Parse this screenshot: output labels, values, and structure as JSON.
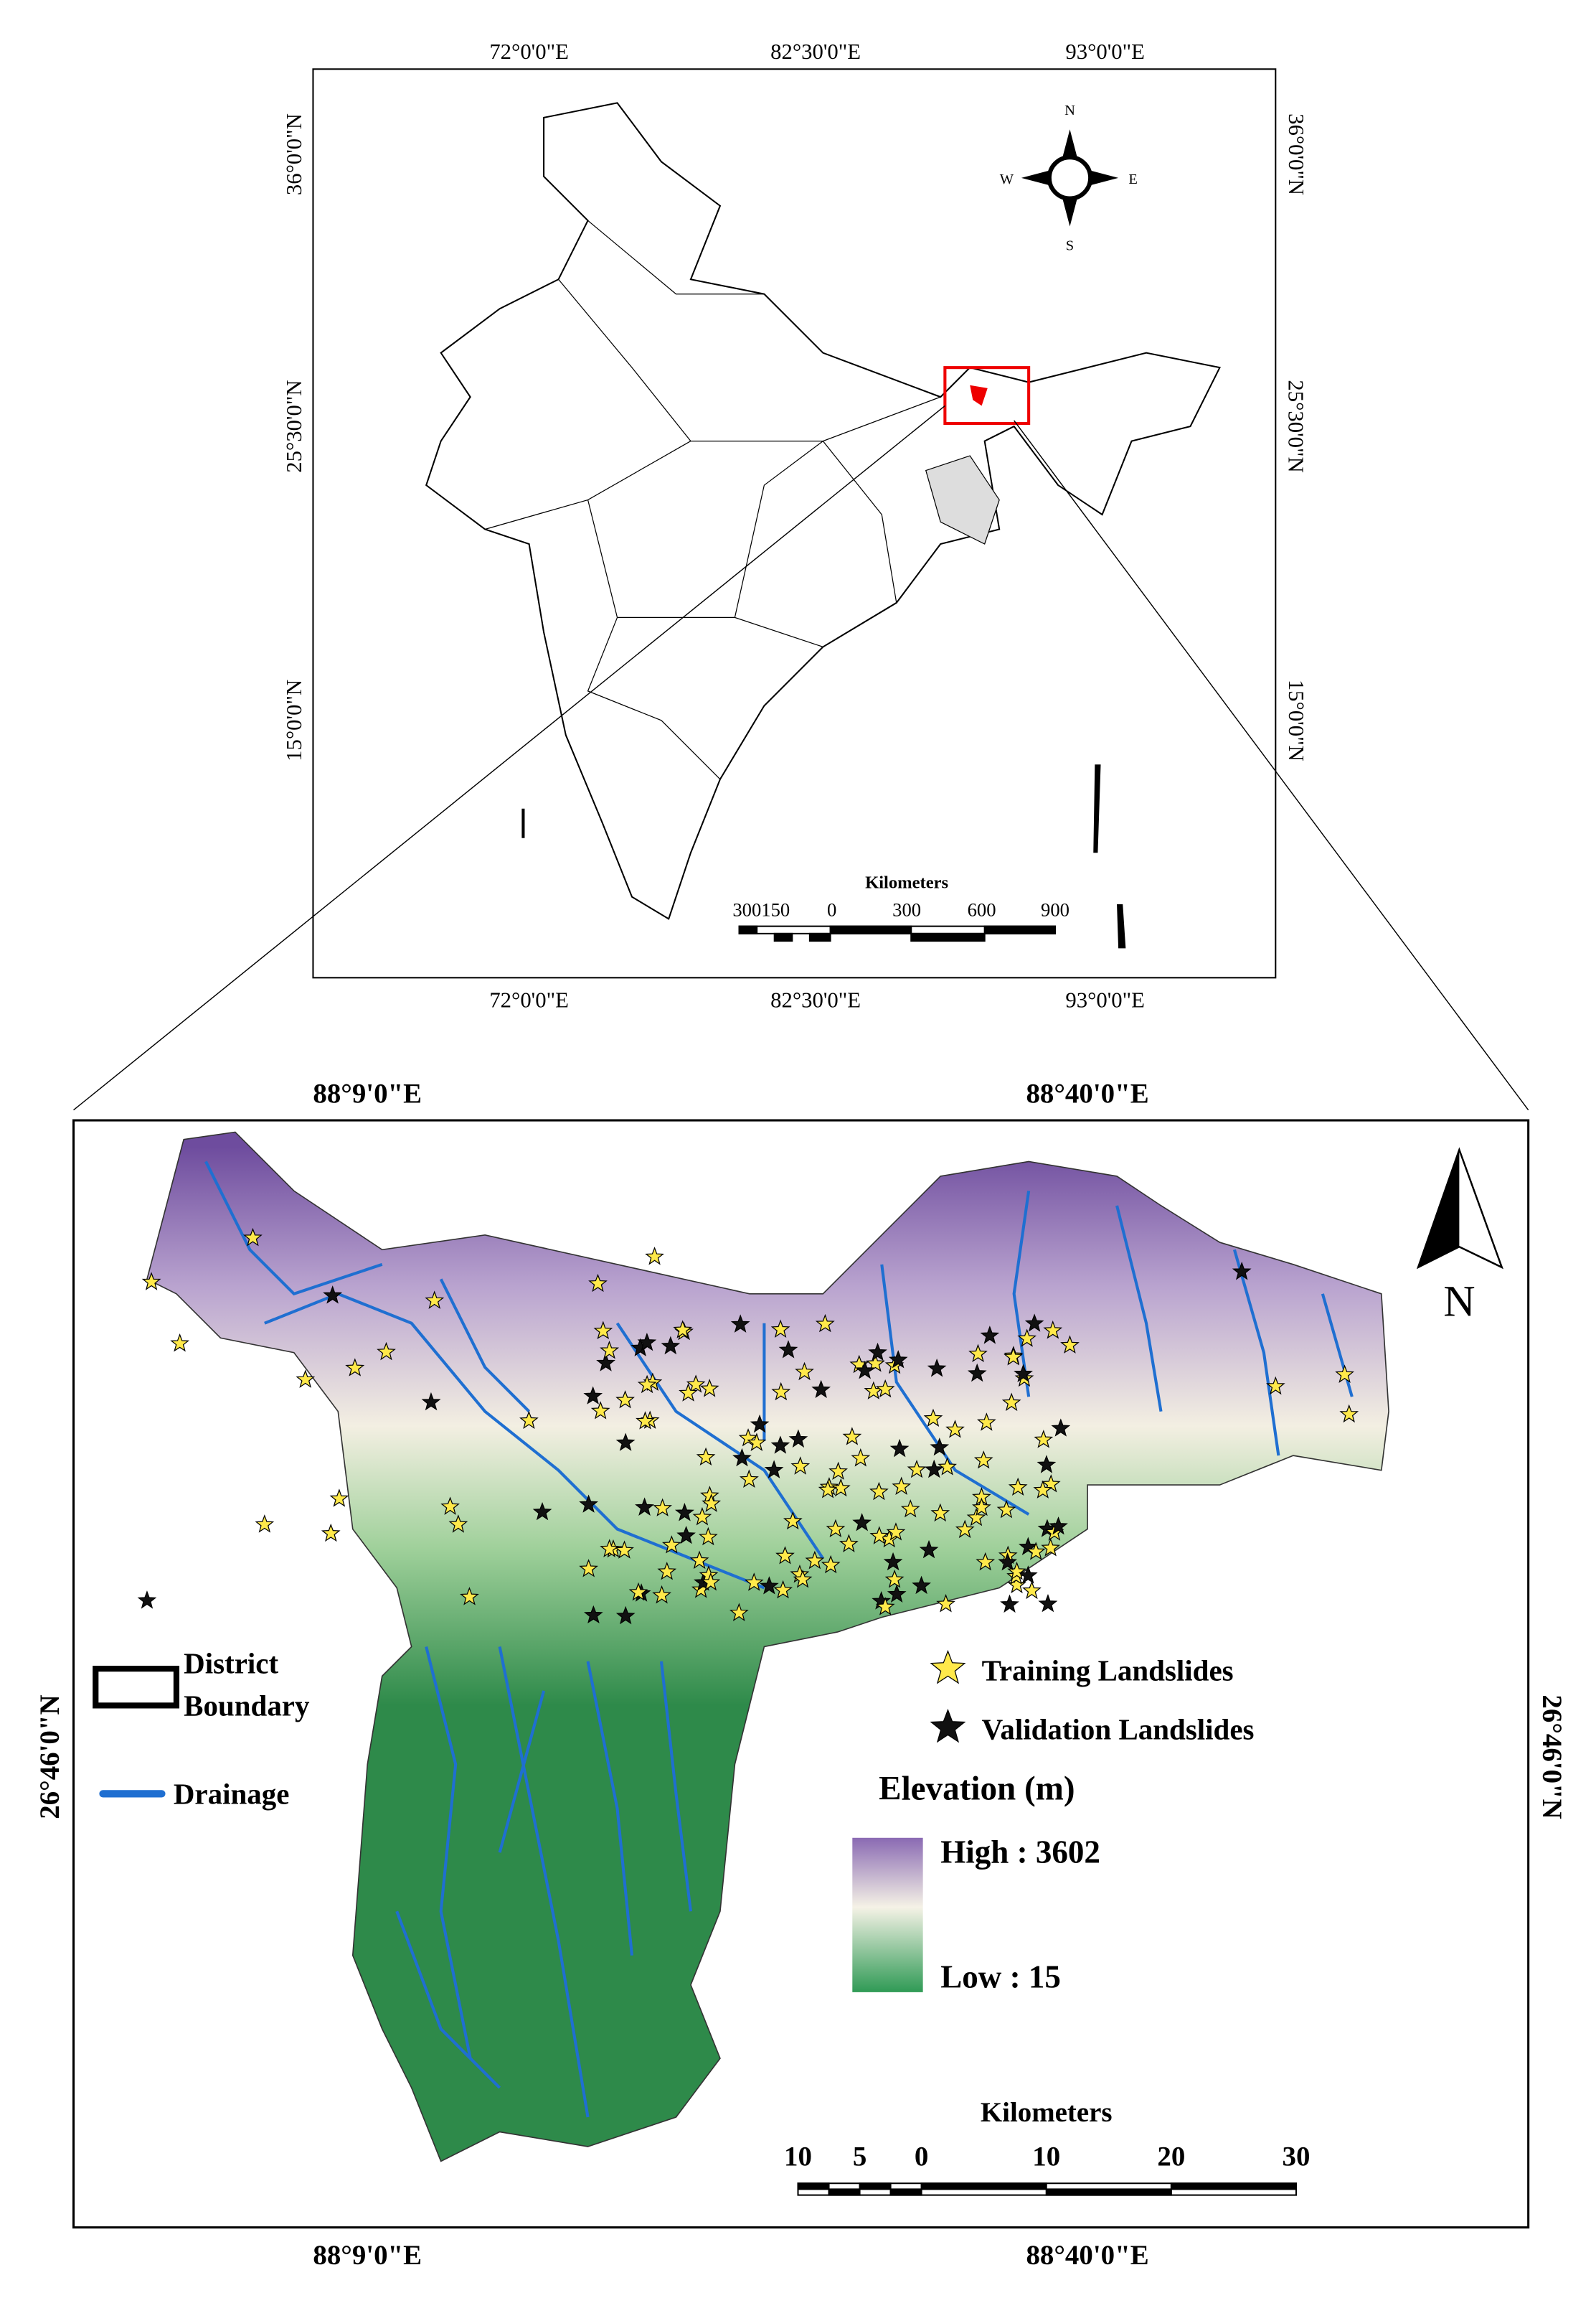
{
  "inset_map": {
    "top_labels": [
      "72°0'0\"E",
      "82°30'0\"E",
      "93°0'0\"E"
    ],
    "bottom_labels": [
      "72°0'0\"E",
      "82°30'0\"E",
      "93°0'0\"E"
    ],
    "left_labels": [
      "36°0'0\"N",
      "25°30'0\"N",
      "15°0'0\"N"
    ],
    "right_labels": [
      "36°0'0\"N",
      "25°30'0\"N",
      "15°0'0\"N"
    ],
    "compass": {
      "north": "N",
      "west": "W",
      "east": "E",
      "south": "S"
    },
    "scale_title": "Kilometers",
    "scale_labels": [
      "300150",
      "0",
      "300",
      "600",
      "900"
    ]
  },
  "main_map": {
    "top_labels": [
      "88°9'0\"E",
      "88°40'0\"E"
    ],
    "bottom_labels": [
      "88°9'0\"E",
      "88°40'0\"E"
    ],
    "left_labels": [
      "26°46'0\"N"
    ],
    "right_labels": [
      "26°46'0\"N"
    ],
    "north_arrow": "N",
    "legend": {
      "district_line1": "District",
      "district_line2": "Boundary",
      "drainage": "Drainage",
      "training": "Training Landslides",
      "validation": "Validation Landslides"
    },
    "elevation": {
      "title": "Elevation (m)",
      "high": "High : 3602",
      "low": "Low : 15"
    },
    "scale_title": "Kilometers",
    "scale_labels": [
      "10",
      "5",
      "0",
      "10",
      "20",
      "30"
    ]
  }
}
